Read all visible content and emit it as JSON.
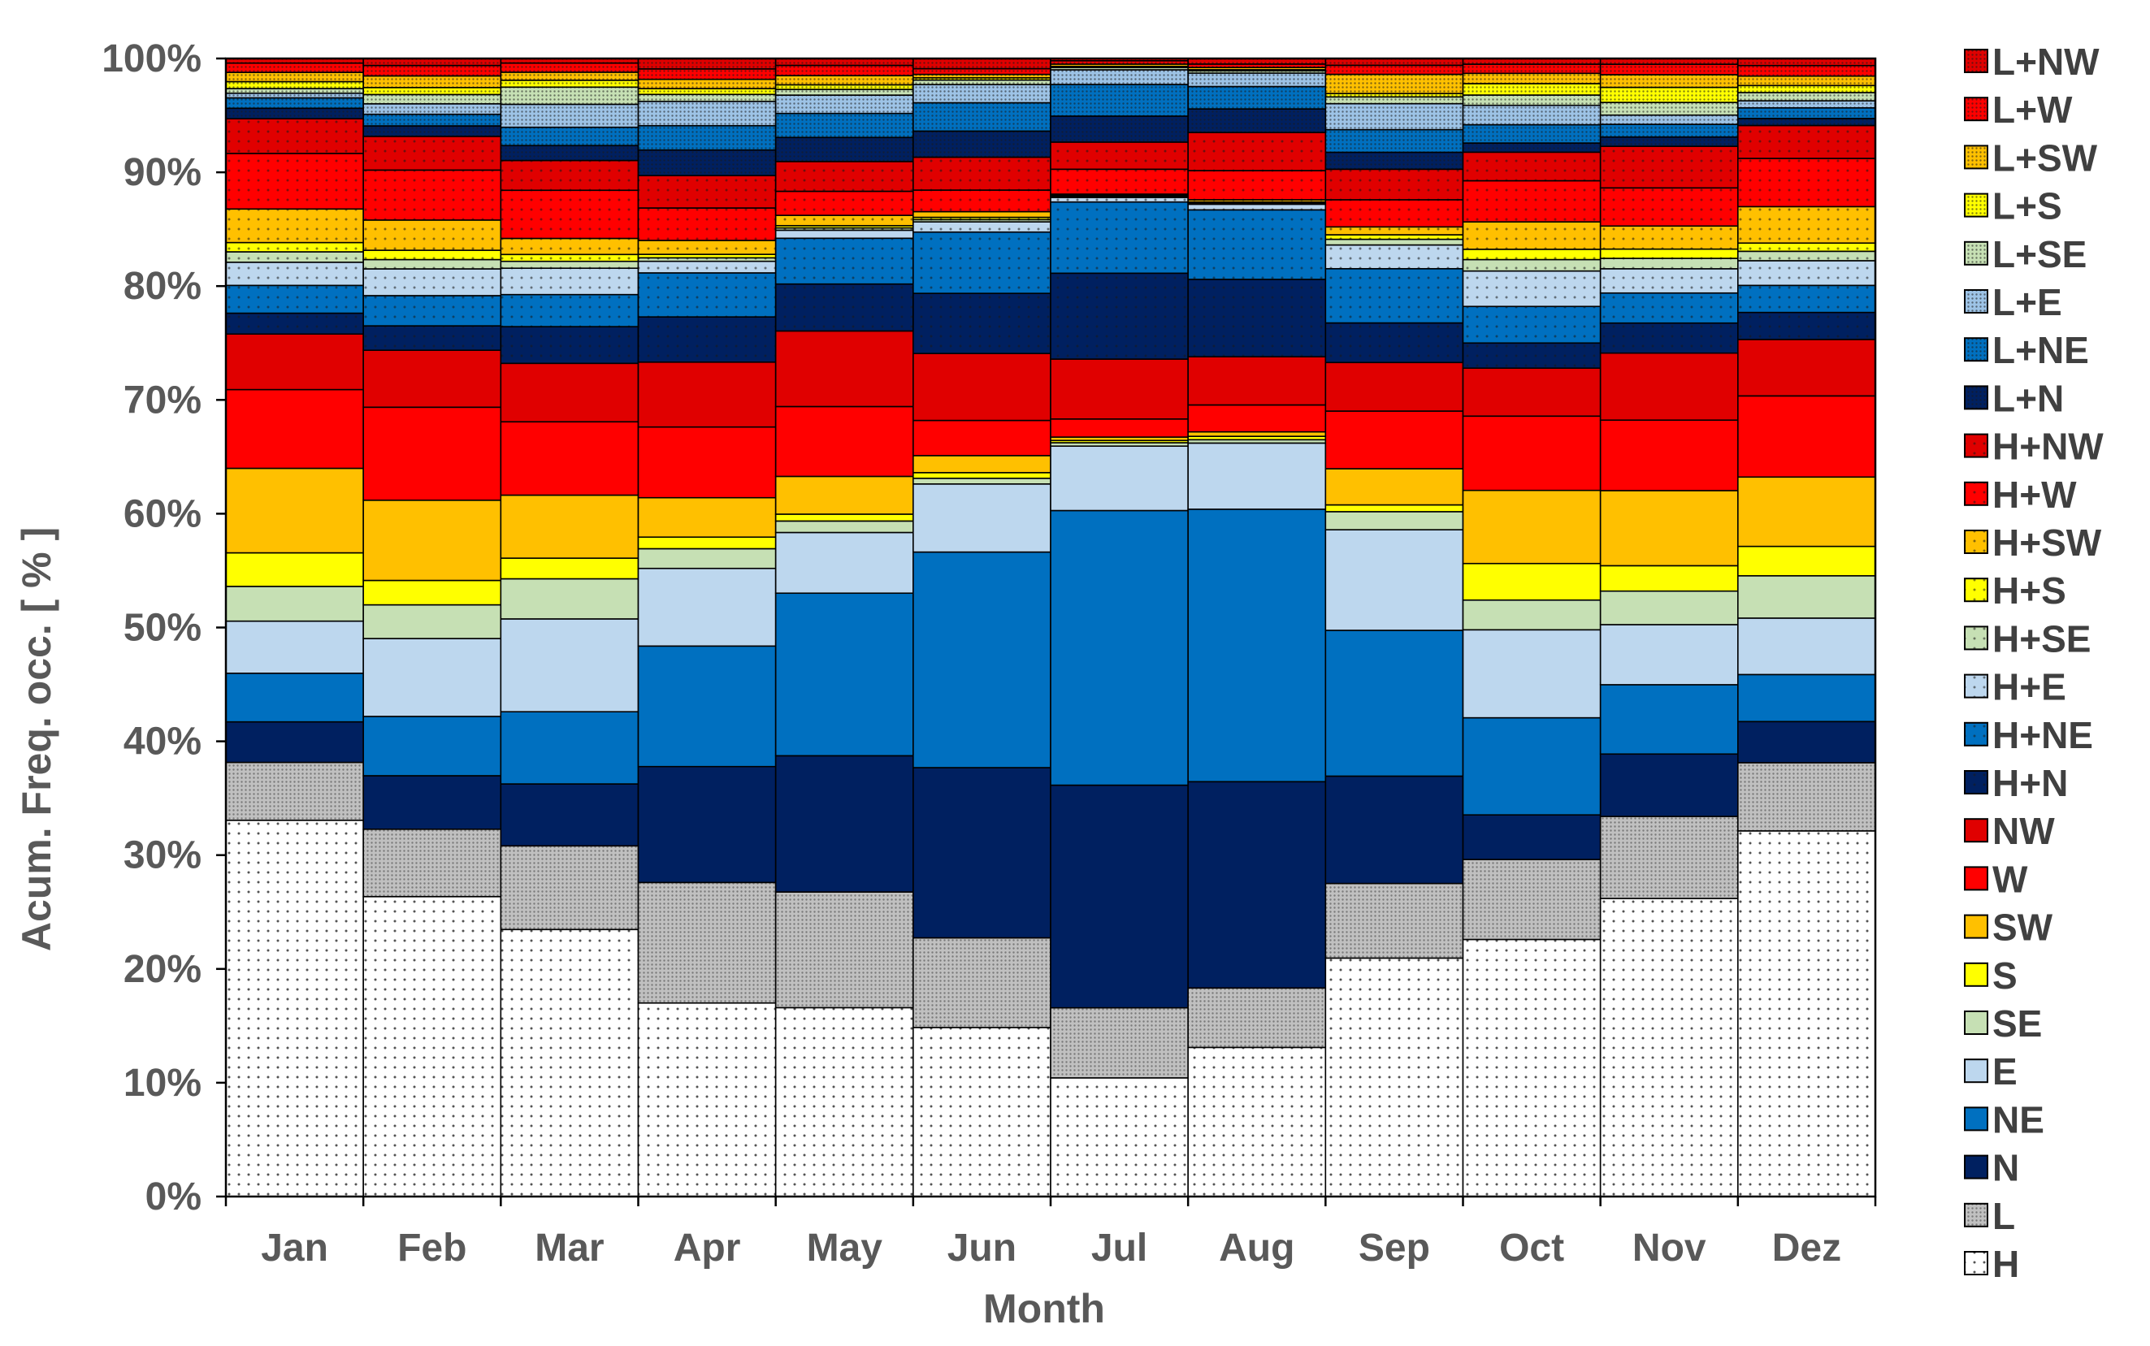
{
  "chart_data": {
    "type": "stacked-bar",
    "title": "",
    "xlabel": "Month",
    "ylabel": "Acum. Freq. occ. [ % ]",
    "ylim": [
      0,
      100
    ],
    "ytick_labels": [
      "0%",
      "10%",
      "20%",
      "30%",
      "40%",
      "50%",
      "60%",
      "70%",
      "80%",
      "90%",
      "100%"
    ],
    "categories": [
      "Jan",
      "Feb",
      "Mar",
      "Apr",
      "May",
      "Jun",
      "Jul",
      "Aug",
      "Sep",
      "Oct",
      "Nov",
      "Dez"
    ],
    "legend_position": "right",
    "series": [
      {
        "name": "H",
        "color": "#ffffff",
        "pattern": "dots-fine",
        "values": [
          32.5,
          25.8,
          23.3,
          16.7,
          16.5,
          14.9,
          10.5,
          13.3,
          21.1,
          22.5,
          25.8,
          31.1
        ]
      },
      {
        "name": "L",
        "color": "#c0c0c0",
        "pattern": "dots-dense",
        "values": [
          5.0,
          5.8,
          7.3,
          10.4,
          10.1,
          7.9,
          6.2,
          5.3,
          6.6,
          7.0,
          7.1,
          5.8
        ]
      },
      {
        "name": "N",
        "color": "#002060",
        "pattern": "none",
        "values": [
          3.5,
          4.6,
          5.4,
          10.0,
          11.9,
          15.0,
          19.7,
          18.4,
          9.5,
          3.9,
          5.4,
          3.5
        ]
      },
      {
        "name": "NE",
        "color": "#0070c0",
        "pattern": "none",
        "values": [
          4.2,
          5.1,
          6.3,
          10.4,
          14.2,
          19.0,
          24.3,
          24.3,
          12.9,
          8.5,
          6.0,
          4.0
        ]
      },
      {
        "name": "E",
        "color": "#bdd7ee",
        "pattern": "none",
        "values": [
          4.5,
          6.7,
          8.1,
          6.7,
          5.3,
          6.0,
          5.7,
          5.9,
          8.9,
          7.7,
          5.2,
          4.8
        ]
      },
      {
        "name": "SE",
        "color": "#c6e0b4",
        "pattern": "none",
        "values": [
          3.0,
          2.9,
          3.5,
          1.7,
          1.0,
          0.5,
          0.3,
          0.3,
          1.6,
          2.6,
          2.9,
          3.6
        ]
      },
      {
        "name": "S",
        "color": "#ffff00",
        "pattern": "none",
        "values": [
          2.9,
          2.1,
          1.8,
          1.0,
          0.6,
          0.5,
          0.2,
          0.3,
          0.6,
          3.2,
          2.2,
          2.5
        ]
      },
      {
        "name": "SW",
        "color": "#ffc000",
        "pattern": "none",
        "values": [
          7.3,
          6.9,
          5.5,
          3.4,
          3.3,
          1.5,
          0.3,
          0.4,
          3.2,
          6.4,
          6.5,
          5.9
        ]
      },
      {
        "name": "W",
        "color": "#ff0000",
        "pattern": "none",
        "values": [
          6.8,
          8.0,
          6.4,
          6.1,
          6.1,
          3.1,
          1.6,
          2.4,
          5.1,
          6.5,
          6.1,
          6.9
        ]
      },
      {
        "name": "NW",
        "color": "#e00000",
        "pattern": "none",
        "values": [
          4.8,
          4.9,
          5.1,
          5.6,
          6.6,
          5.9,
          5.3,
          4.3,
          4.3,
          4.2,
          5.8,
          4.8
        ]
      },
      {
        "name": "H+N",
        "color": "#002060",
        "pattern": "dots-fine",
        "values": [
          1.8,
          2.1,
          3.2,
          3.9,
          4.1,
          5.3,
          7.6,
          6.9,
          3.5,
          2.2,
          2.6,
          2.3
        ]
      },
      {
        "name": "H+NE",
        "color": "#0070c0",
        "pattern": "dots-fine",
        "values": [
          2.4,
          2.6,
          2.8,
          3.8,
          4.0,
          5.4,
          6.3,
          6.2,
          4.8,
          3.2,
          2.6,
          2.3
        ]
      },
      {
        "name": "H+E",
        "color": "#bdd7ee",
        "pattern": "dots-fine",
        "values": [
          2.0,
          2.3,
          2.3,
          1.0,
          0.7,
          0.9,
          0.4,
          0.5,
          2.1,
          3.1,
          2.1,
          2.1
        ]
      },
      {
        "name": "H+SE",
        "color": "#c6e0b4",
        "pattern": "dots-fine",
        "values": [
          0.9,
          0.8,
          0.6,
          0.3,
          0.2,
          0.2,
          0.1,
          0.1,
          0.5,
          1.0,
          0.9,
          0.8
        ]
      },
      {
        "name": "H+S",
        "color": "#ffff00",
        "pattern": "dots-fine",
        "values": [
          0.8,
          0.8,
          0.6,
          0.3,
          0.2,
          0.2,
          0.1,
          0.1,
          0.4,
          0.9,
          0.8,
          0.7
        ]
      },
      {
        "name": "H+SW",
        "color": "#ffc000",
        "pattern": "dots-fine",
        "values": [
          2.9,
          2.6,
          1.4,
          1.2,
          0.9,
          0.5,
          0.1,
          0.2,
          0.7,
          2.4,
          2.0,
          3.1
        ]
      },
      {
        "name": "H+W",
        "color": "#ff0000",
        "pattern": "dots-fine",
        "values": [
          4.8,
          4.3,
          4.2,
          2.8,
          2.1,
          1.9,
          2.2,
          2.6,
          2.4,
          3.6,
          3.3,
          4.1
        ]
      },
      {
        "name": "H+NW",
        "color": "#e00000",
        "pattern": "dots-fine",
        "values": [
          3.0,
          2.9,
          2.6,
          2.8,
          2.6,
          2.9,
          2.4,
          3.4,
          2.7,
          2.5,
          3.6,
          2.8
        ]
      },
      {
        "name": "L+N",
        "color": "#002060",
        "pattern": "dots-dense",
        "values": [
          0.9,
          0.9,
          1.3,
          2.2,
          2.1,
          2.3,
          2.3,
          2.1,
          1.5,
          0.8,
          0.8,
          0.6
        ]
      },
      {
        "name": "L+NE",
        "color": "#0070c0",
        "pattern": "dots-dense",
        "values": [
          0.9,
          1.0,
          1.6,
          2.1,
          2.1,
          2.5,
          2.8,
          2.0,
          2.0,
          1.6,
          1.1,
          0.9
        ]
      },
      {
        "name": "L+E",
        "color": "#9dc3e6",
        "pattern": "dots-dense",
        "values": [
          0.4,
          0.9,
          2.0,
          2.1,
          1.6,
          1.6,
          1.3,
          1.2,
          2.3,
          1.7,
          0.8,
          0.6
        ]
      },
      {
        "name": "L+SE",
        "color": "#c6e0b4",
        "pattern": "dots-dense",
        "values": [
          0.4,
          0.8,
          1.5,
          0.6,
          0.5,
          0.4,
          0.2,
          0.2,
          0.6,
          0.9,
          1.1,
          0.7
        ]
      },
      {
        "name": "L+S",
        "color": "#ffff00",
        "pattern": "dots-dense",
        "values": [
          0.6,
          0.6,
          0.6,
          0.5,
          0.4,
          0.2,
          0.1,
          0.1,
          0.3,
          1.0,
          1.3,
          0.6
        ]
      },
      {
        "name": "L+SW",
        "color": "#ffc000",
        "pattern": "dots-dense",
        "values": [
          0.8,
          1.0,
          0.7,
          0.8,
          0.8,
          0.3,
          0.2,
          0.2,
          1.7,
          0.9,
          1.1,
          0.8
        ]
      },
      {
        "name": "L+W",
        "color": "#ff0000",
        "pattern": "dots-dense",
        "values": [
          0.8,
          0.9,
          0.8,
          0.9,
          0.9,
          0.5,
          0.3,
          0.3,
          0.8,
          0.8,
          0.9,
          0.9
        ]
      },
      {
        "name": "L+NW",
        "color": "#e00000",
        "pattern": "dots-dense",
        "values": [
          0.4,
          0.6,
          0.4,
          0.9,
          0.6,
          0.9,
          0.2,
          0.5,
          0.6,
          0.5,
          0.5,
          0.6
        ]
      }
    ]
  }
}
